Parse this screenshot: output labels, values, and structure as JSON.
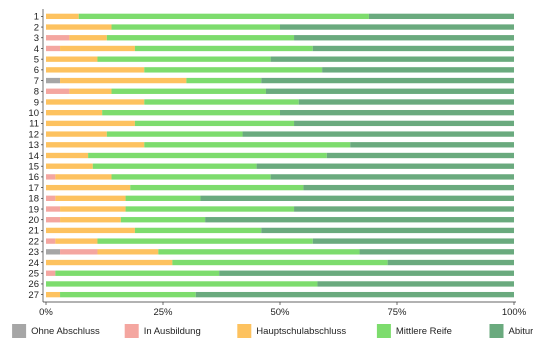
{
  "chart_data": {
    "type": "bar",
    "orientation": "horizontal",
    "stacked": true,
    "normalized": true,
    "title": "",
    "xlabel": "",
    "ylabel": "",
    "xlim": [
      0,
      1
    ],
    "x_ticks": [
      0,
      0.25,
      0.5,
      0.75,
      1
    ],
    "x_tick_labels": [
      "0%",
      "25%",
      "50%",
      "75%",
      "100%"
    ],
    "grid": false,
    "legend_position": "bottom",
    "categories": [
      "1",
      "2",
      "3",
      "4",
      "5",
      "6",
      "7",
      "8",
      "9",
      "10",
      "11",
      "12",
      "13",
      "14",
      "15",
      "16",
      "17",
      "18",
      "19",
      "20",
      "21",
      "22",
      "23",
      "24",
      "25",
      "26",
      "27"
    ],
    "series": [
      {
        "name": "Ohne Abschluss",
        "color": "#a6a6a6",
        "values": [
          0,
          0,
          0,
          0,
          0,
          0,
          0.03,
          0,
          0,
          0,
          0,
          0,
          0,
          0,
          0,
          0,
          0,
          0,
          0,
          0,
          0,
          0,
          0.03,
          0,
          0,
          0,
          0
        ]
      },
      {
        "name": "In  Ausbildung",
        "color": "#f4a6a0",
        "values": [
          0,
          0,
          0.05,
          0.03,
          0,
          0,
          0,
          0.05,
          0,
          0,
          0,
          0,
          0,
          0,
          0,
          0.02,
          0,
          0.02,
          0.03,
          0.03,
          0,
          0.02,
          0.08,
          0,
          0.02,
          0,
          0
        ]
      },
      {
        "name": "Hauptschulabschluss",
        "color": "#fdc25f",
        "values": [
          0.07,
          0.14,
          0.08,
          0.16,
          0.11,
          0.21,
          0.27,
          0.09,
          0.21,
          0.12,
          0.19,
          0.13,
          0.21,
          0.09,
          0.1,
          0.12,
          0.18,
          0.15,
          0.14,
          0.13,
          0.19,
          0.09,
          0.13,
          0.27,
          0,
          0,
          0.03
        ]
      },
      {
        "name": "Mittlere Reife",
        "color": "#7ddc6d",
        "values": [
          0.62,
          0.36,
          0.4,
          0.38,
          0.37,
          0.38,
          0.16,
          0.33,
          0.33,
          0.38,
          0.34,
          0.29,
          0.44,
          0.51,
          0.35,
          0.34,
          0.37,
          0.16,
          0.36,
          0.18,
          0.27,
          0.46,
          0.43,
          0.46,
          0.35,
          0.58,
          0.29
        ]
      },
      {
        "name": "Abitur",
        "color": "#6aaa7e",
        "values": [
          0.31,
          0.5,
          0.47,
          0.43,
          0.52,
          0.41,
          0.54,
          0.53,
          0.46,
          0.5,
          0.47,
          0.58,
          0.35,
          0.4,
          0.55,
          0.52,
          0.45,
          0.67,
          0.47,
          0.66,
          0.54,
          0.43,
          0.33,
          0.27,
          0.63,
          0.42,
          0.68
        ]
      }
    ]
  }
}
